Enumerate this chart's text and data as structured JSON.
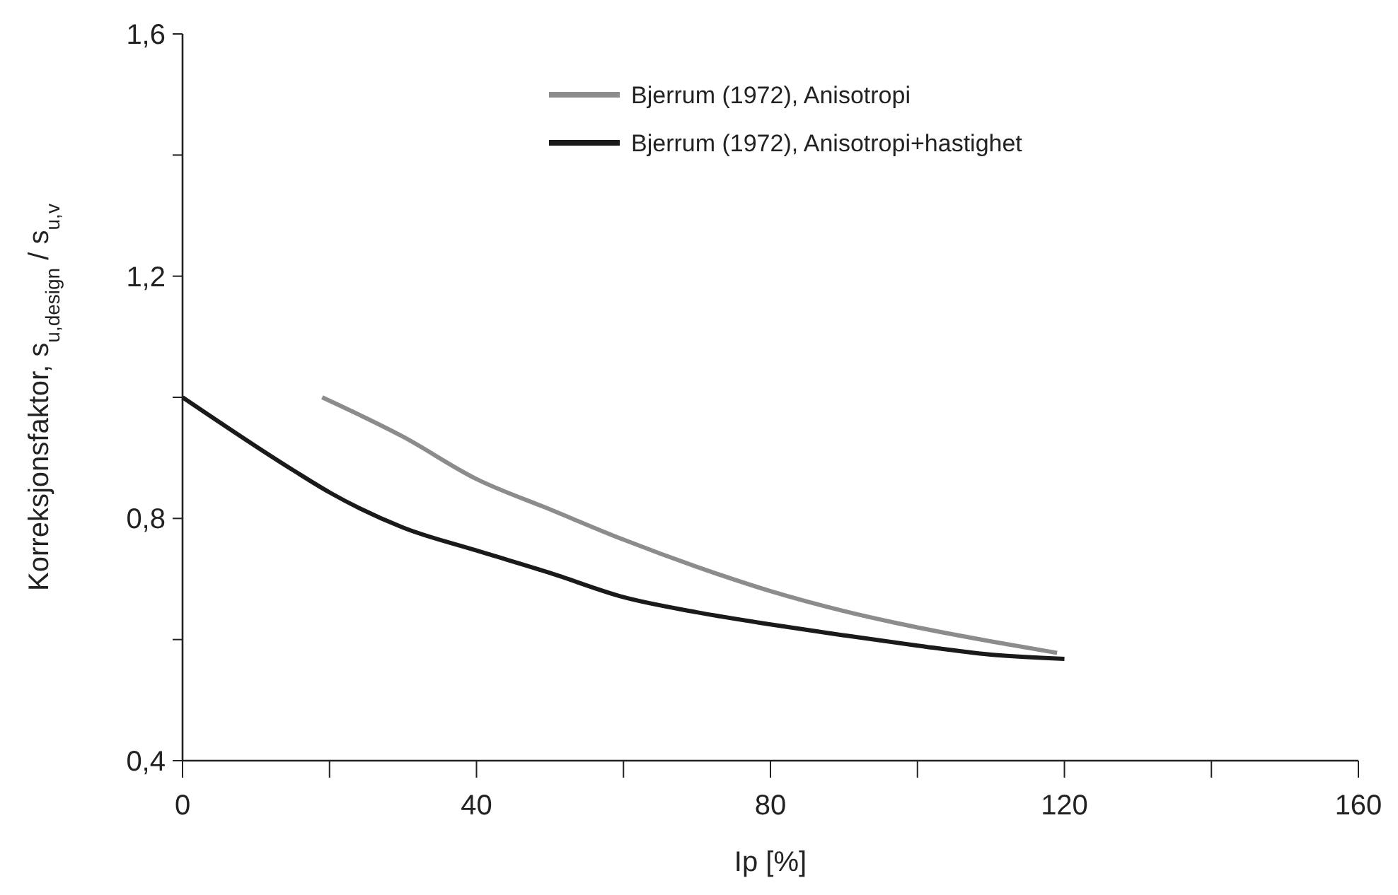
{
  "chart_data": {
    "type": "line",
    "xlabel": "Ip [%]",
    "ylabel": "Korreksjonsfaktor, s$_{u,design}$ / s$_{u,v}$",
    "xlim": [
      0,
      160
    ],
    "xticks": [
      0,
      {
        "value": 20,
        "label": null
      },
      40,
      {
        "value": 60,
        "label": null
      },
      80,
      {
        "value": 100,
        "label": null
      },
      120,
      {
        "value": 140,
        "label": null
      },
      160
    ],
    "ylim": [
      0.4,
      1.6
    ],
    "yticks": [
      {
        "value": 0.4,
        "label": "0,4"
      },
      {
        "value": 0.6,
        "label": null
      },
      {
        "value": 0.8,
        "label": "0,8"
      },
      {
        "value": 1.0,
        "label": null
      },
      {
        "value": 1.2,
        "label": "1,2"
      },
      {
        "value": 1.4,
        "label": null
      },
      {
        "value": 1.6,
        "label": "1,6"
      }
    ],
    "grid": false,
    "legend": "top",
    "marker": "none",
    "line_style": "solid",
    "series": [
      {
        "name": "Bjerrum (1972), Anisotropi",
        "color": "#8c8c8c",
        "x": [
          19,
          30,
          40,
          50,
          60,
          70,
          80,
          90,
          100,
          110,
          119
        ],
        "values": [
          1.0,
          0.935,
          0.865,
          0.815,
          0.765,
          0.72,
          0.68,
          0.647,
          0.62,
          0.597,
          0.578
        ]
      },
      {
        "name": "Bjerrum (1972), Anisotropi+hastighet",
        "color": "#1a1a1a",
        "x": [
          0,
          15,
          20,
          30,
          40,
          50,
          60,
          70,
          80,
          90,
          100,
          110,
          120
        ],
        "values": [
          1.0,
          0.88,
          0.843,
          0.785,
          0.747,
          0.71,
          0.67,
          0.645,
          0.625,
          0.607,
          0.59,
          0.575,
          0.568
        ]
      }
    ]
  }
}
